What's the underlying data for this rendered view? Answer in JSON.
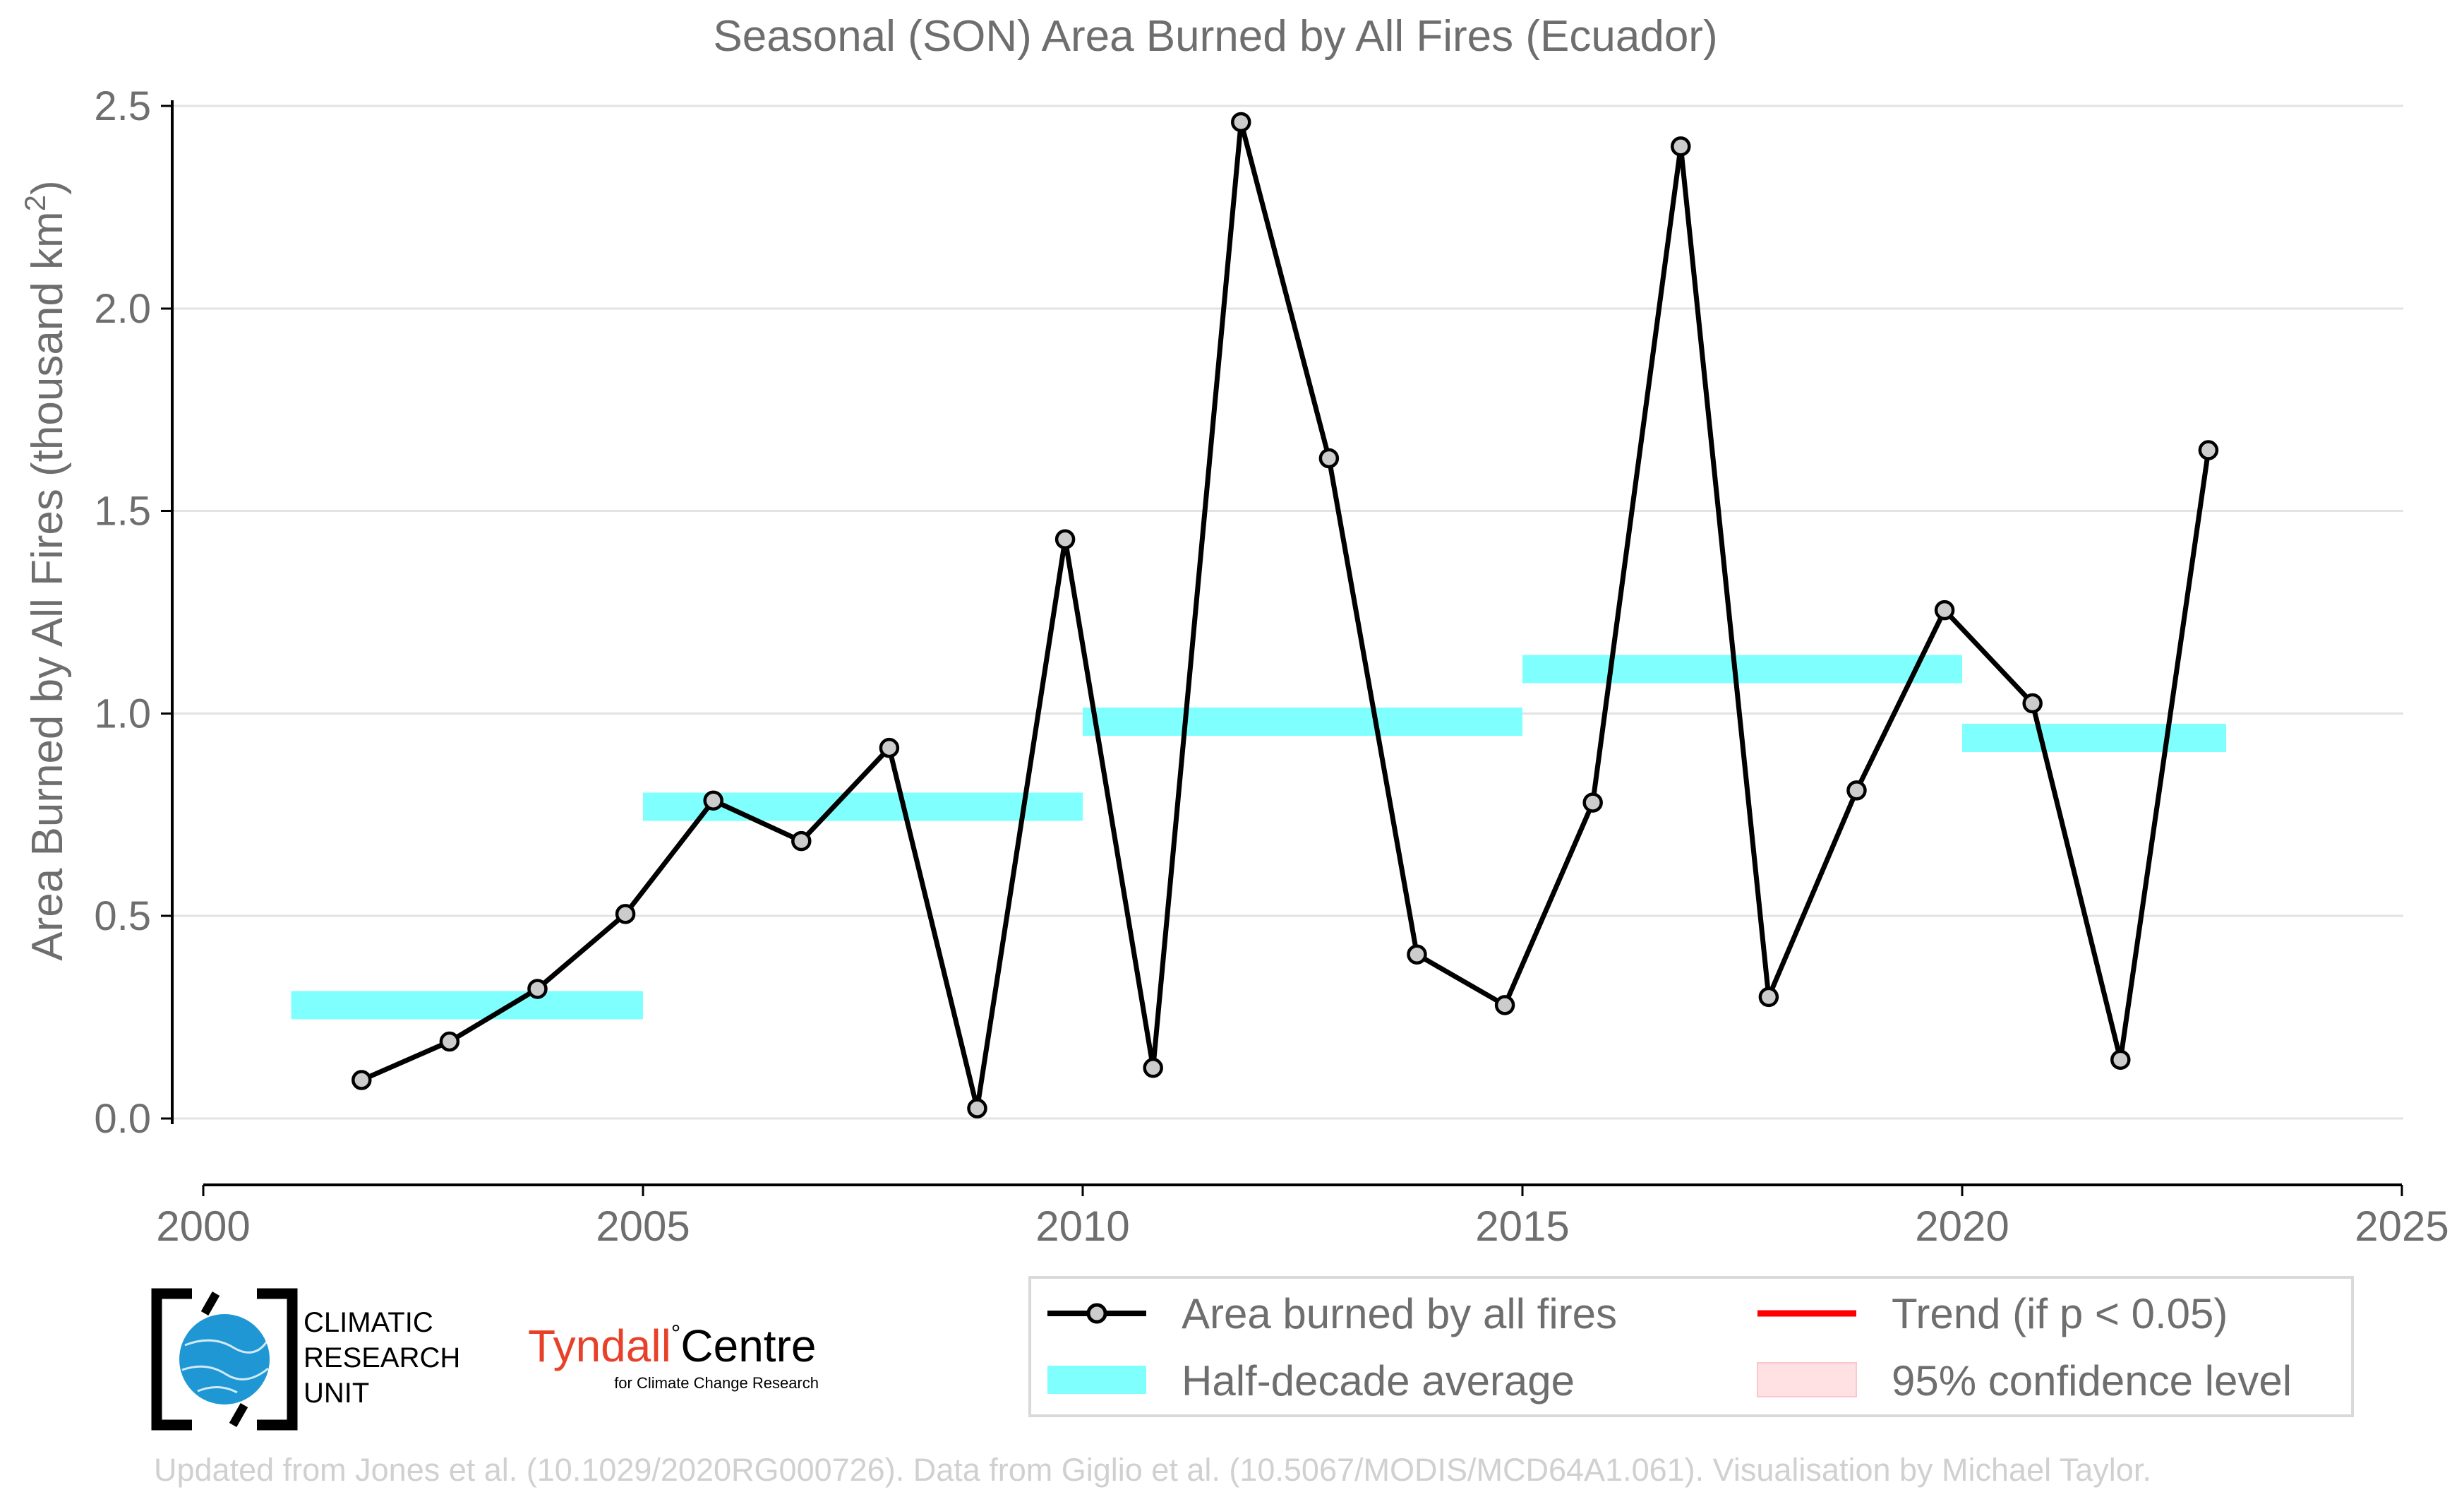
{
  "chart_data": {
    "type": "line",
    "title": "Seasonal (SON) Area Burned by All Fires (Ecuador)",
    "ylabel": "Area Burned by All Fires (thousand km",
    "ylabel_sup": "2",
    "ylabel_suffix": ")",
    "xlabel": "",
    "xlim": [
      2000,
      2025
    ],
    "ylim": [
      -0.1,
      2.55
    ],
    "x_ticks": [
      2000,
      2005,
      2010,
      2015,
      2020,
      2025
    ],
    "x_tick_labels": [
      "2000",
      "2005",
      "2010",
      "2015",
      "2020",
      "2025"
    ],
    "y_ticks": [
      0.0,
      0.5,
      1.0,
      1.5,
      2.0,
      2.5
    ],
    "y_tick_labels": [
      "0.0",
      "0.5",
      "1.0",
      "1.5",
      "2.0",
      "2.5"
    ],
    "grid": true,
    "legend_position": "bottom-right",
    "series": [
      {
        "name": "Area burned by all fires",
        "color": "#000000",
        "marker_fill": "#cccccc",
        "x": [
          2001.8,
          2002.8,
          2003.8,
          2004.8,
          2005.8,
          2006.8,
          2007.8,
          2008.8,
          2009.8,
          2010.8,
          2011.8,
          2012.8,
          2013.8,
          2014.8,
          2015.8,
          2016.8,
          2017.8,
          2018.8,
          2019.8,
          2020.8,
          2021.8,
          2022.8
        ],
        "y": [
          0.095,
          0.19,
          0.32,
          0.505,
          0.785,
          0.685,
          0.915,
          0.025,
          1.43,
          0.125,
          2.46,
          1.63,
          0.405,
          0.28,
          0.78,
          2.4,
          0.3,
          0.81,
          1.255,
          1.025,
          0.145,
          1.65
        ]
      }
    ],
    "half_decade_average": {
      "name": "Half-decade average",
      "color": "#80ffff",
      "segments": [
        {
          "x_start": 2001,
          "x_end": 2005,
          "y": 0.28
        },
        {
          "x_start": 2005,
          "x_end": 2010,
          "y": 0.77
        },
        {
          "x_start": 2010,
          "x_end": 2015,
          "y": 0.98
        },
        {
          "x_start": 2015,
          "x_end": 2020,
          "y": 1.11
        },
        {
          "x_start": 2020,
          "x_end": 2023,
          "y": 0.94
        }
      ]
    },
    "legend": [
      {
        "label": "Area burned by all fires",
        "kind": "line-marker",
        "color": "#000000"
      },
      {
        "label": "Trend (if p < 0.05)",
        "kind": "line",
        "color": "#ff0000"
      },
      {
        "label": "Half-decade average",
        "kind": "band",
        "color": "#80ffff"
      },
      {
        "label": "95% confidence level",
        "kind": "band",
        "color": "#ffe0e3"
      }
    ]
  },
  "branding": {
    "cru_text": [
      "CLIMATIC",
      "RESEARCH",
      "UNIT"
    ],
    "tyndall_name": "Tyndall",
    "tyndall_degree": "°",
    "tyndall_centre": "Centre",
    "tyndall_sub": "for Climate Change Research",
    "tyndall_color": "#e8412a",
    "cru_globe_color": "#1f97d4"
  },
  "footer": {
    "credit": "Updated from Jones et al. (10.1029/2020RG000726). Data from Giglio et al. (10.5067/MODIS/MCD64A1.061). Visualisation by Michael Taylor."
  }
}
